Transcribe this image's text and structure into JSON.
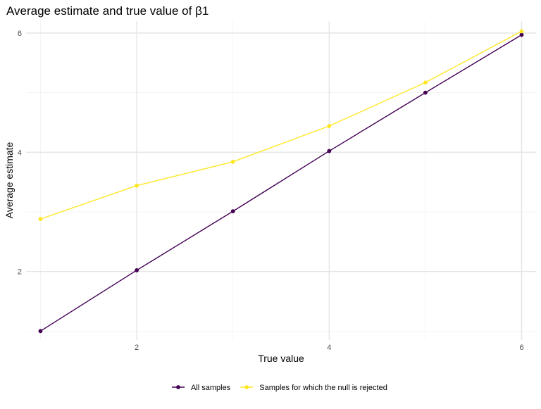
{
  "chart_data": {
    "type": "line",
    "title": "Average estimate and true value of β1",
    "xlabel": "True value",
    "ylabel": "Average estimate",
    "xlim": [
      0.85,
      6.15
    ],
    "ylim": [
      0.85,
      6.2
    ],
    "xticks": [
      2,
      4,
      6
    ],
    "yticks": [
      2,
      4,
      6
    ],
    "x": [
      1,
      2,
      3,
      4,
      5,
      6
    ],
    "grid": true,
    "legend_position": "bottom",
    "series": [
      {
        "name": "All samples",
        "color": "#440154",
        "values": [
          1.0,
          2.02,
          3.01,
          4.02,
          5.0,
          5.97
        ]
      },
      {
        "name": "Samples for which the null is rejected",
        "color": "#FDE725",
        "values": [
          2.88,
          3.44,
          3.84,
          4.44,
          5.17,
          6.03
        ]
      }
    ]
  }
}
